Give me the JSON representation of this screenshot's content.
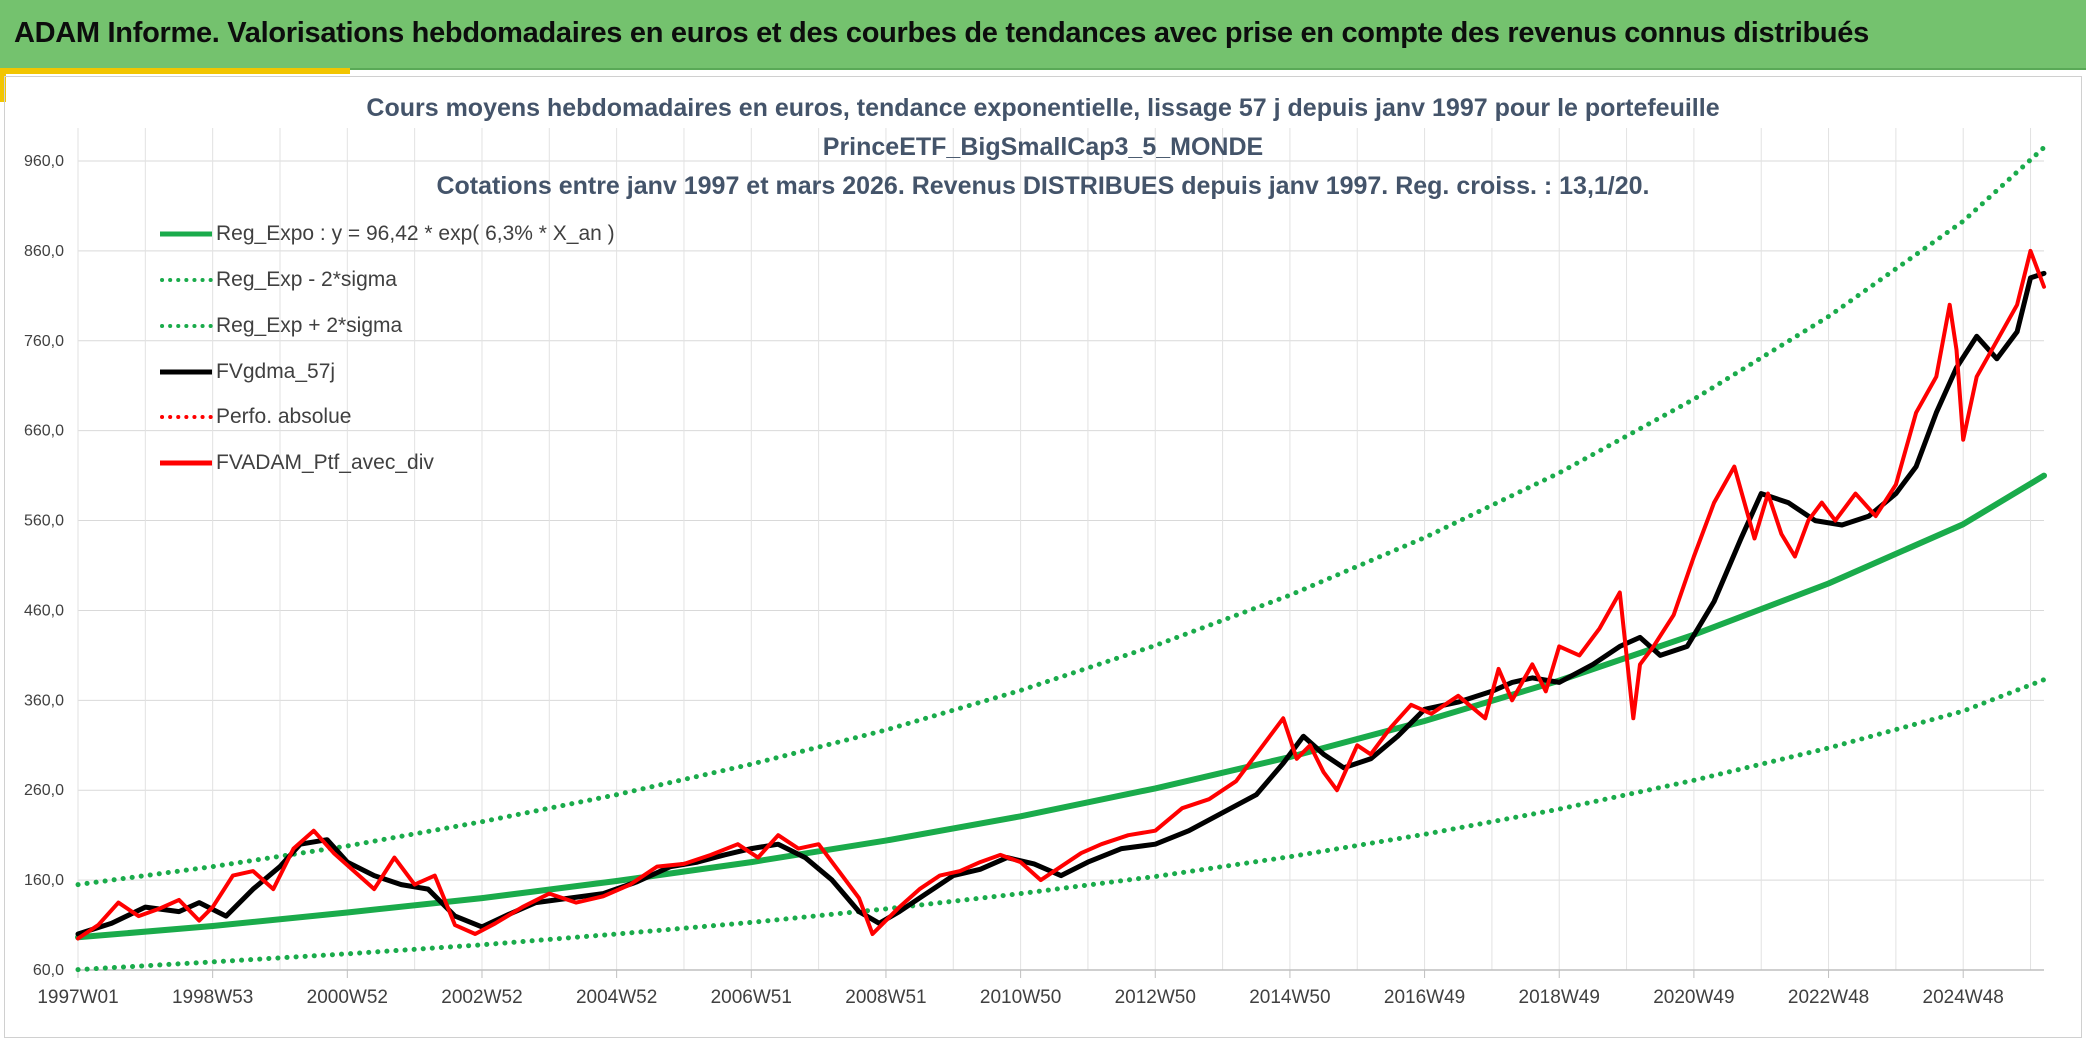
{
  "header": {
    "title": "ADAM Informe. Valorisations hebdomadaires en euros et des courbes de tendances avec prise en compte des revenus connus distribués"
  },
  "chart_data": {
    "type": "line",
    "title_lines": [
      "Cours moyens hebdomadaires en euros, tendance exponentielle, lissage 57 j depuis janv 1997 pour le portefeuille",
      "PrinceETF_BigSmallCap3_5_MONDE",
      "Cotations entre janv 1997 et mars 2026. Revenus DISTRIBUES depuis janv 1997. Reg. croiss. : 13,1/20."
    ],
    "x_tick_labels": [
      "1997W01",
      "1998W53",
      "2000W52",
      "2002W52",
      "2004W52",
      "2006W51",
      "2008W51",
      "2010W50",
      "2012W50",
      "2014W50",
      "2016W49",
      "2018W49",
      "2020W49",
      "2022W48",
      "2024W48"
    ],
    "x_range_years": [
      1997.0,
      2026.2
    ],
    "y_tick_labels": [
      "60,0",
      "160,0",
      "260,0",
      "360,0",
      "460,0",
      "560,0",
      "660,0",
      "760,0",
      "860,0",
      "960,0"
    ],
    "ylim": [
      60,
      1000
    ],
    "grid": true,
    "legend_position": "top-left",
    "colors": {
      "green": "#1aab4b",
      "black": "#000000",
      "red": "#ff0000"
    },
    "series": [
      {
        "name": "Reg_Expo : y = 96,42 * exp( 6,3% *  X_an )",
        "style": "solid",
        "color": "#1aab4b",
        "x": [
          1997,
          1999,
          2001,
          2003,
          2005,
          2007,
          2009,
          2011,
          2013,
          2015,
          2017,
          2019,
          2021,
          2023,
          2025,
          2026.2
        ],
        "y": [
          96.4,
          109,
          124,
          140,
          159,
          180,
          204,
          231,
          262,
          297,
          337,
          382,
          433,
          490,
          556,
          610
        ]
      },
      {
        "name": "Reg_Exp - 2*sigma",
        "style": "dotted",
        "color": "#1aab4b",
        "x": [
          1997,
          1999,
          2001,
          2003,
          2005,
          2007,
          2009,
          2011,
          2013,
          2015,
          2017,
          2019,
          2021,
          2023,
          2025,
          2026.2
        ],
        "y": [
          60.5,
          69,
          78,
          88,
          100,
          113,
          128,
          145,
          164,
          186,
          211,
          239,
          271,
          307,
          348,
          383
        ]
      },
      {
        "name": "Reg_Exp + 2*sigma",
        "style": "dotted",
        "color": "#1aab4b",
        "x": [
          1997,
          1999,
          2001,
          2003,
          2005,
          2007,
          2009,
          2011,
          2013,
          2015,
          2017,
          2019,
          2021,
          2023,
          2025,
          2026.2
        ],
        "y": [
          155,
          175,
          198,
          225,
          255,
          289,
          327,
          371,
          421,
          477,
          541,
          613,
          695,
          787,
          893,
          975
        ]
      },
      {
        "name": "FVgdma_57j",
        "style": "solid",
        "color": "#000000",
        "x": [
          1997.0,
          1997.5,
          1998.0,
          1998.5,
          1998.8,
          1999.2,
          1999.6,
          2000.0,
          2000.3,
          2000.7,
          2001.0,
          2001.4,
          2001.8,
          2002.2,
          2002.6,
          2003.0,
          2003.4,
          2003.8,
          2004.3,
          2004.8,
          2005.3,
          2005.8,
          2006.2,
          2006.6,
          2007.0,
          2007.4,
          2007.8,
          2008.2,
          2008.6,
          2008.9,
          2009.2,
          2009.6,
          2010.0,
          2010.4,
          2010.8,
          2011.2,
          2011.6,
          2012.0,
          2012.5,
          2013.0,
          2013.5,
          2014.0,
          2014.5,
          2014.9,
          2015.2,
          2015.5,
          2015.8,
          2016.2,
          2016.6,
          2017.0,
          2017.5,
          2018.0,
          2018.3,
          2018.6,
          2019.0,
          2019.5,
          2019.9,
          2020.2,
          2020.5,
          2020.9,
          2021.3,
          2021.7,
          2022.0,
          2022.4,
          2022.8,
          2023.2,
          2023.6,
          2024.0,
          2024.3,
          2024.6,
          2024.9,
          2025.2,
          2025.5,
          2025.8,
          2026.0,
          2026.2
        ],
        "y": [
          100,
          112,
          130,
          125,
          135,
          120,
          150,
          175,
          200,
          205,
          180,
          165,
          155,
          150,
          120,
          108,
          122,
          135,
          140,
          145,
          158,
          175,
          180,
          188,
          195,
          200,
          185,
          160,
          125,
          112,
          125,
          145,
          165,
          172,
          185,
          178,
          165,
          180,
          195,
          200,
          215,
          235,
          255,
          290,
          320,
          300,
          285,
          295,
          320,
          350,
          358,
          370,
          380,
          385,
          380,
          400,
          420,
          430,
          410,
          420,
          470,
          540,
          590,
          580,
          560,
          555,
          565,
          590,
          620,
          680,
          730,
          765,
          740,
          770,
          830,
          835
        ]
      },
      {
        "name": "Perfo. absolue",
        "style": "dotted",
        "color": "#ff0000",
        "x": [],
        "y": []
      },
      {
        "name": "FVADAM_Ptf_avec_div",
        "style": "solid",
        "color": "#ff0000",
        "x": [
          1997.0,
          1997.3,
          1997.6,
          1997.9,
          1998.2,
          1998.5,
          1998.8,
          1999.0,
          1999.3,
          1999.6,
          1999.9,
          2000.2,
          2000.5,
          2000.8,
          2001.1,
          2001.4,
          2001.7,
          2002.0,
          2002.3,
          2002.6,
          2002.9,
          2003.2,
          2003.6,
          2004.0,
          2004.4,
          2004.8,
          2005.2,
          2005.6,
          2006.0,
          2006.4,
          2006.8,
          2007.1,
          2007.4,
          2007.7,
          2008.0,
          2008.3,
          2008.6,
          2008.8,
          2009.0,
          2009.2,
          2009.5,
          2009.8,
          2010.1,
          2010.4,
          2010.7,
          2011.0,
          2011.3,
          2011.6,
          2011.9,
          2012.2,
          2012.6,
          2013.0,
          2013.4,
          2013.8,
          2014.2,
          2014.6,
          2014.9,
          2015.1,
          2015.3,
          2015.5,
          2015.7,
          2016.0,
          2016.2,
          2016.5,
          2016.8,
          2017.1,
          2017.5,
          2017.9,
          2018.1,
          2018.3,
          2018.6,
          2018.8,
          2019.0,
          2019.3,
          2019.6,
          2019.9,
          2020.1,
          2020.2,
          2020.4,
          2020.7,
          2021.0,
          2021.3,
          2021.6,
          2021.9,
          2022.1,
          2022.3,
          2022.5,
          2022.7,
          2022.9,
          2023.1,
          2023.4,
          2023.7,
          2024.0,
          2024.3,
          2024.6,
          2024.8,
          2024.9,
          2025.0,
          2025.2,
          2025.5,
          2025.8,
          2026.0,
          2026.1,
          2026.2
        ],
        "y": [
          95,
          110,
          135,
          120,
          128,
          138,
          115,
          130,
          165,
          170,
          150,
          195,
          215,
          190,
          170,
          150,
          185,
          155,
          165,
          110,
          100,
          112,
          130,
          145,
          135,
          142,
          155,
          175,
          178,
          188,
          200,
          185,
          210,
          195,
          200,
          170,
          140,
          100,
          115,
          130,
          150,
          165,
          170,
          180,
          188,
          180,
          160,
          175,
          190,
          200,
          210,
          215,
          240,
          250,
          270,
          310,
          340,
          295,
          310,
          280,
          260,
          310,
          300,
          330,
          355,
          345,
          365,
          340,
          395,
          360,
          400,
          370,
          420,
          410,
          440,
          480,
          340,
          400,
          420,
          455,
          520,
          580,
          620,
          540,
          590,
          545,
          520,
          560,
          580,
          560,
          590,
          565,
          600,
          680,
          720,
          800,
          750,
          650,
          720,
          760,
          800,
          860,
          840,
          820
        ]
      }
    ]
  }
}
